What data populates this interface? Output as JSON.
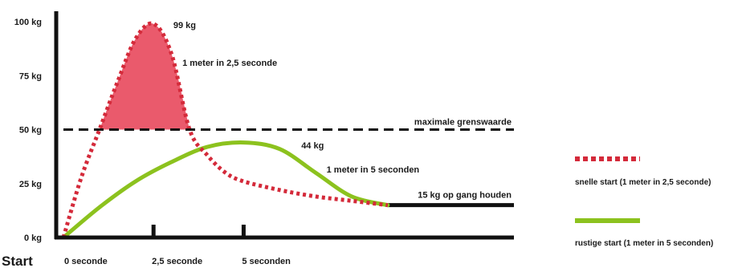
{
  "chart_data": {
    "type": "line",
    "y_ticks": [
      "0 kg",
      "25 kg",
      "50 kg",
      "75 kg",
      "100 kg"
    ],
    "y_tick_values": [
      0,
      25,
      50,
      75,
      100
    ],
    "ylim": [
      0,
      100
    ],
    "x_tick_labels": [
      "0 seconde",
      "2,5 seconde",
      "5 seconden"
    ],
    "x_tick_values": [
      0,
      2.5,
      5
    ],
    "xlim": [
      -0.2,
      12.5
    ],
    "start_label": "Start",
    "threshold": {
      "value": 50,
      "label": "maximale grenswaarde",
      "style": "dashed"
    },
    "hold": {
      "value": 15,
      "label": "15 kg op gang houden",
      "from_x": 9
    },
    "series": [
      {
        "name": "snelle start (1 meter in 2,5 seconde)",
        "style": "dotted",
        "color": "#d42a3a",
        "fill_above_threshold": "#ea5a6c",
        "x": [
          0,
          0.5,
          1,
          1.5,
          2,
          2.5,
          3,
          3.5,
          4,
          4.5,
          5,
          6,
          7,
          8,
          9
        ],
        "y": [
          0,
          28,
          50,
          72,
          92,
          99,
          85,
          50,
          38,
          30,
          26,
          22,
          19,
          17,
          15
        ],
        "peak_label": "99 kg",
        "peak_note": "1 meter in 2,5 seconde"
      },
      {
        "name": "rustige start (1 meter in 5 seconden)",
        "style": "solid",
        "color": "#8cc21e",
        "x": [
          0,
          1,
          2,
          3,
          4,
          5,
          6,
          7,
          8,
          9
        ],
        "y": [
          0,
          14,
          26,
          35,
          42,
          44,
          41,
          30,
          19,
          15
        ],
        "peak_label": "44 kg",
        "peak_note": "1 meter in 5 seconden"
      }
    ],
    "legend_position": "right"
  }
}
